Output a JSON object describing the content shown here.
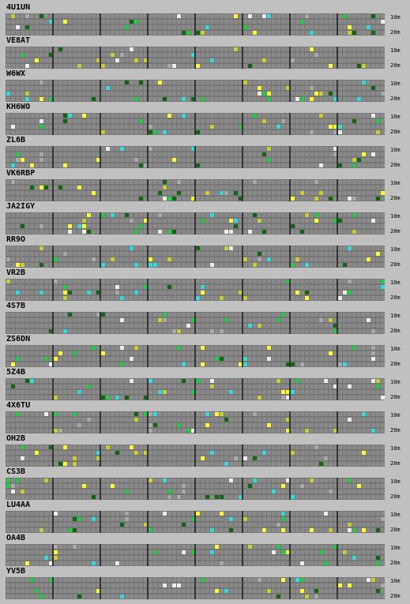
{
  "band_labels": {
    "top": "10m",
    "bottom": "20m"
  },
  "colors": {
    "background": "#c0c0c0",
    "grid": "#777777",
    "cell_empty": "#8a8a8a",
    "separator": "#333333"
  },
  "signal_colors": [
    "#22cc44",
    "#33dddd",
    "#cccc33",
    "#aaaaaa",
    "#ffff33",
    "#116611",
    "#eeeeee"
  ],
  "beacons": [
    {
      "callsign": "4U1UN"
    },
    {
      "callsign": "VE8AT"
    },
    {
      "callsign": "W6WX"
    },
    {
      "callsign": "KH6WO"
    },
    {
      "callsign": "ZL6B"
    },
    {
      "callsign": "VK6RBP"
    },
    {
      "callsign": "JA2IGY"
    },
    {
      "callsign": "RR9O"
    },
    {
      "callsign": "VR2B"
    },
    {
      "callsign": "4S7B"
    },
    {
      "callsign": "ZS6DN"
    },
    {
      "callsign": "5Z4B"
    },
    {
      "callsign": "4X6TU"
    },
    {
      "callsign": "OH2B"
    },
    {
      "callsign": "CS3B"
    },
    {
      "callsign": "LU4AA"
    },
    {
      "callsign": "OA4B"
    },
    {
      "callsign": "YV5B"
    }
  ]
}
